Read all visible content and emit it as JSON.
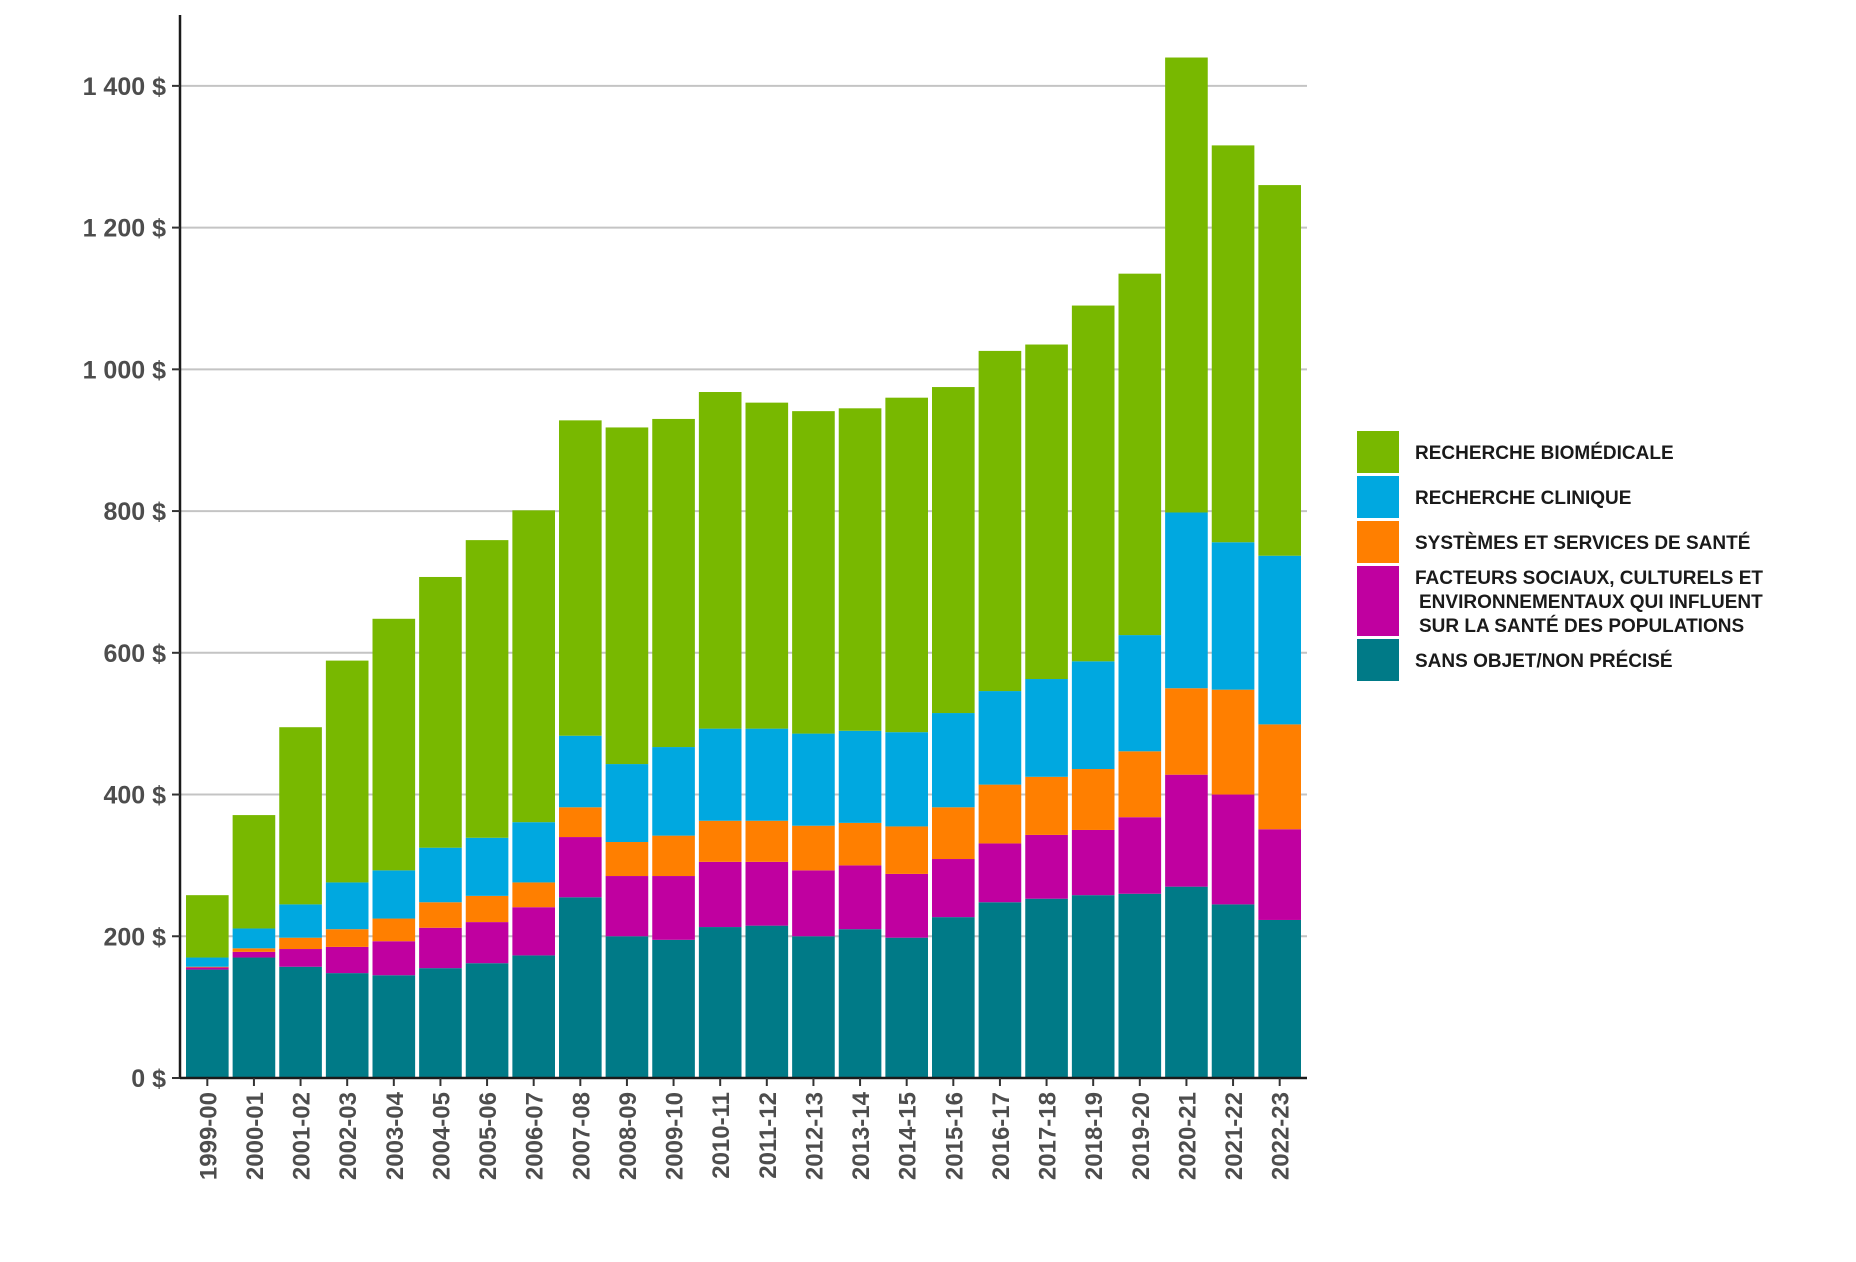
{
  "chart_data": {
    "type": "bar",
    "stacked": true,
    "title": "",
    "xlabel": "",
    "ylabel": "",
    "ylim": [
      0,
      1500
    ],
    "y_ticks": [
      0,
      200,
      400,
      600,
      800,
      1000,
      1200,
      1400
    ],
    "y_tick_labels": [
      "0 $",
      "200 $",
      "400 $",
      "600 $",
      "800 $",
      "1 000 $",
      "1 200 $",
      "1 400 $"
    ],
    "grid": "horizontal",
    "legend_position": "right",
    "categories": [
      "1999-00",
      "2000-01",
      "2001-02",
      "2002-03",
      "2003-04",
      "2004-05",
      "2005-06",
      "2006-07",
      "2007-08",
      "2008-09",
      "2009-10",
      "2010-11",
      "2011-12",
      "2012-13",
      "2013-14",
      "2014-15",
      "2015-16",
      "2016-17",
      "2017-18",
      "2018-19",
      "2019-20",
      "2020-21",
      "2021-22",
      "2022-23"
    ],
    "series": [
      {
        "name": "SANS OBJET/NON PRÉCISÉ",
        "color": "#007a87",
        "values": [
          153,
          170,
          157,
          148,
          145,
          155,
          162,
          173,
          255,
          200,
          195,
          213,
          215,
          200,
          210,
          198,
          227,
          248,
          253,
          258,
          260,
          270,
          245,
          223
        ]
      },
      {
        "name": "FACTEURS SOCIAUX, CULTURELS ET ENVIRONNEMENTAUX QUI INFLUENT SUR LA SANTÉ DES POPULATIONS",
        "color": "#c000a0",
        "values": [
          3,
          8,
          25,
          37,
          48,
          57,
          58,
          68,
          85,
          85,
          90,
          92,
          90,
          93,
          90,
          90,
          82,
          83,
          90,
          92,
          108,
          158,
          155,
          128
        ]
      },
      {
        "name": "SYSTÈMES ET SERVICES DE SANTÉ",
        "color": "#ff7f00",
        "values": [
          1,
          5,
          16,
          25,
          32,
          36,
          37,
          35,
          42,
          48,
          57,
          58,
          58,
          63,
          60,
          67,
          73,
          83,
          82,
          86,
          93,
          122,
          148,
          148
        ]
      },
      {
        "name": "RECHERCHE CLINIQUE",
        "color": "#00a8e0",
        "values": [
          13,
          28,
          47,
          66,
          68,
          77,
          82,
          85,
          101,
          110,
          125,
          130,
          130,
          130,
          130,
          133,
          133,
          132,
          138,
          152,
          164,
          248,
          208,
          238
        ]
      },
      {
        "name": "RECHERCHE BIOMÉDICALE",
        "color": "#78b800",
        "values": [
          88,
          160,
          250,
          313,
          355,
          382,
          420,
          440,
          445,
          475,
          463,
          475,
          460,
          455,
          455,
          472,
          460,
          480,
          472,
          502,
          510,
          642,
          560,
          523
        ]
      }
    ],
    "legend_order": [
      {
        "label": "RECHERCHE BIOMÉDICALE",
        "lines": [
          "RECHERCHE BIOMÉDICALE"
        ],
        "color": "#78b800"
      },
      {
        "label": "RECHERCHE CLINIQUE",
        "lines": [
          "RECHERCHE CLINIQUE"
        ],
        "color": "#00a8e0"
      },
      {
        "label": "SYSTÈMES ET SERVICES DE SANTÉ",
        "lines": [
          "SYSTÈMES ET SERVICES DE SANTÉ"
        ],
        "color": "#ff7f00"
      },
      {
        "label": "FACTEURS SOCIAUX, CULTURELS ET ENVIRONNEMENTAUX QUI INFLUENT SUR LA SANTÉ DES POPULATIONS",
        "lines": [
          "FACTEURS SOCIAUX, CULTURELS ET",
          "ENVIRONNEMENTAUX QUI INFLUENT",
          "SUR LA SANTÉ DES POPULATIONS"
        ],
        "color": "#c000a0"
      },
      {
        "label": "SANS OBJET/NON PRÉCISÉ",
        "lines": [
          "SANS OBJET/NON PRÉCISÉ"
        ],
        "color": "#007a87"
      }
    ]
  }
}
